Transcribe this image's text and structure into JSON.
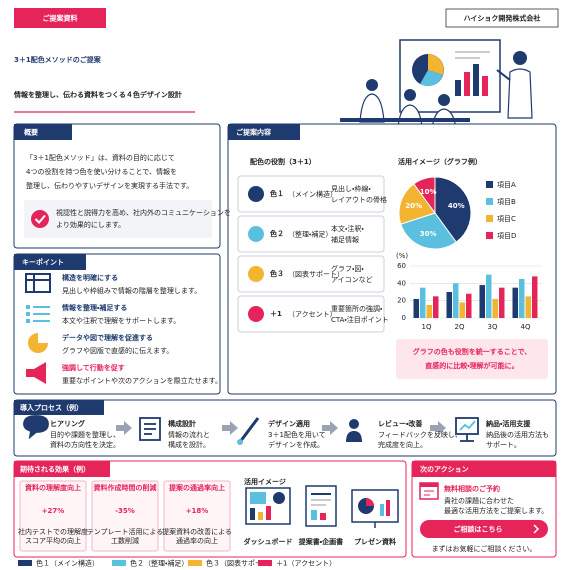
{
  "header": {
    "tag": "ご提案資料",
    "company": "ハイショク開発株式会社",
    "title": "3＋1配色メソッドのご提案",
    "subtitle": "情報を整理し、伝わる資料をつくる４色デザイン設計"
  },
  "overview": {
    "heading": "概要",
    "lines": [
      "「3＋1配色メソッド」は、資料の目的に応じて",
      "4つの役割を持つ色を使い分けることで、情報を",
      "整理し、伝わりやすいデザインを実現する手法です。"
    ],
    "note_lines": [
      "視認性と説得力を高め、社内外のコミュニケーションを",
      "より効果的にします。"
    ]
  },
  "key_points": {
    "heading": "キーポイント",
    "items": [
      {
        "title": "構造を明確にする",
        "desc": "見出しや枠組みで情報の階層を整理します。"
      },
      {
        "title": "情報を整理・補足する",
        "desc": "本文や注釈で理解をサポートします。"
      },
      {
        "title": "データや図で理解を促進する",
        "desc": "グラフや図版で直感的に伝えます。"
      },
      {
        "title": "強調して行動を促す",
        "desc": "重要なポイントや次のアクションを際立たせます。"
      }
    ]
  },
  "proposal": {
    "heading": "ご提案内容",
    "roles_title": "配色の役割（3＋1）",
    "roles": [
      {
        "name": "色１",
        "sub": "（メイン構造）",
        "desc_lines": [
          "見出し・枠線・",
          "レイアウトの骨格"
        ],
        "color": "#1e3a6e"
      },
      {
        "name": "色２",
        "sub": "（整理・補足）",
        "desc_lines": [
          "本文・注釈・",
          "補足情報"
        ],
        "color": "#5bc0e0"
      },
      {
        "name": "色３",
        "sub": "（図表サポート）",
        "desc_lines": [
          "グラフ・図・",
          "アイコンなど"
        ],
        "color": "#f2b431"
      },
      {
        "name": "＋1",
        "sub": "（アクセント）",
        "desc_lines": [
          "重要箇所の強調・",
          "CTA・注目ポイント"
        ],
        "color": "#e5245a"
      }
    ],
    "chart_title": "活用イメージ（グラフ例）",
    "pie": {
      "type": "pie",
      "categories": [
        "項目A",
        "項目B",
        "項目C",
        "項目D"
      ],
      "values": [
        40,
        30,
        20,
        10
      ],
      "value_labels": [
        "40%",
        "30%",
        "20%",
        "10%"
      ],
      "colors": [
        "#1e3a6e",
        "#5bc0e0",
        "#f2b431",
        "#e5245a"
      ]
    },
    "bar": {
      "type": "bar",
      "y_label": "(%)",
      "categories": [
        "1Q",
        "2Q",
        "3Q",
        "4Q"
      ],
      "series": [
        {
          "color": "#1e3a6e",
          "values": [
            22,
            30,
            38,
            35
          ]
        },
        {
          "color": "#5bc0e0",
          "values": [
            35,
            40,
            50,
            45
          ]
        },
        {
          "color": "#f2b431",
          "values": [
            15,
            18,
            22,
            25
          ]
        },
        {
          "color": "#e5245a",
          "values": [
            25,
            28,
            35,
            48
          ]
        }
      ],
      "ylim": [
        0,
        60
      ],
      "yticks": [
        0,
        20,
        40,
        60
      ],
      "grid": true
    },
    "note_lines": [
      "グラフの色も役割を統一することで、",
      "直感的に比較・理解が可能に。"
    ]
  },
  "process": {
    "heading": "導入プロセス（例）",
    "steps": [
      {
        "title": "ヒアリング",
        "desc_lines": [
          "目的や課題を整理し、",
          "資料の方向性を決定。"
        ]
      },
      {
        "title": "構成設計",
        "desc_lines": [
          "情報の流れと",
          "構成を設計。"
        ]
      },
      {
        "title": "デザイン適用",
        "desc_lines": [
          "3＋1配色を用いて",
          "デザインを作成。"
        ]
      },
      {
        "title": "レビュー・改善",
        "desc_lines": [
          "フィードバックを反映し、",
          "完成度を向上。"
        ]
      },
      {
        "title": "納品・活用支援",
        "desc_lines": [
          "納品後の活用方法も",
          "サポート。"
        ]
      }
    ]
  },
  "effects": {
    "heading": "期待される効果（例）",
    "metrics": [
      {
        "label": "資料の理解度向上",
        "value": "+27%",
        "desc_lines": [
          "社内テストでの理解度",
          "スコア平均の向上"
        ]
      },
      {
        "label": "資料作成時間の削減",
        "value": "-35%",
        "desc_lines": [
          "テンプレート活用による",
          "工数削減"
        ]
      },
      {
        "label": "提案の通過率向上",
        "value": "+18%",
        "desc_lines": [
          "提案資料の改善による",
          "通過率の向上"
        ]
      }
    ],
    "usage_title": "活用イメージ",
    "usage_items": [
      "ダッシュボード",
      "提案書・企画書",
      "プレゼン資料"
    ]
  },
  "next_action": {
    "heading": "次のアクション",
    "title": "無料相談のご予約",
    "lines": [
      "貴社の課題に合わせた",
      "最適な活用方法をご提案します。"
    ],
    "button": "ご相談はこちら",
    "footer": "まずはお気軽にご相談ください。"
  },
  "legend": [
    "色１（メイン構造）",
    "色２（整理・補足）",
    "色３（図表サポート）",
    "＋1（アクセント）"
  ]
}
